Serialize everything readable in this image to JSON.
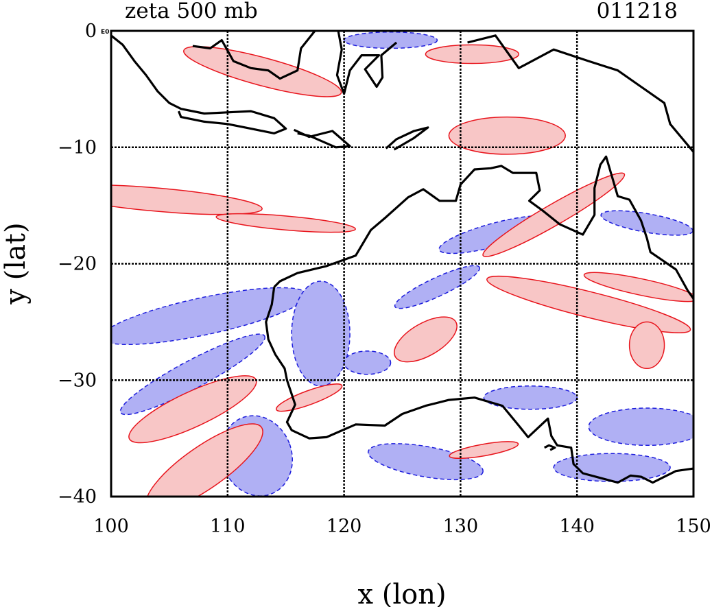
{
  "chart_data": {
    "type": "heatmap",
    "title": "zeta 500 mb",
    "date_label": "011218",
    "xlabel": "x (lon)",
    "ylabel": "y (lat)",
    "xlim": [
      100,
      150
    ],
    "ylim": [
      -40,
      0
    ],
    "xticks": [
      100,
      110,
      120,
      130,
      140,
      150
    ],
    "yticks": [
      0,
      -10,
      -20,
      -30,
      -40
    ],
    "xtick_labels": [
      "100",
      "110",
      "120",
      "130",
      "140",
      "150"
    ],
    "ytick_labels": [
      "0",
      "−10",
      "−20",
      "−30",
      "−40"
    ],
    "corner_note": "E0",
    "grid": true,
    "gridlines_x": [
      110,
      120,
      130,
      140
    ],
    "gridlines_y": [
      -10,
      -20,
      -30
    ],
    "colors": {
      "positive_fill": "#f8c6c6",
      "positive_contour": "#e8141c",
      "negative_fill": "#b0b0f4",
      "negative_contour": "#1c1cdc",
      "coastline": "#000000",
      "grid": "#000000"
    },
    "coastlines": [
      [
        [
          100,
          -0.4
        ],
        [
          101,
          -1.2
        ],
        [
          102,
          -2.6
        ],
        [
          103,
          -3.8
        ],
        [
          104,
          -5.2
        ],
        [
          105,
          -6.2
        ],
        [
          106,
          -6.7
        ],
        [
          108,
          -7.1
        ],
        [
          110,
          -7.0
        ],
        [
          112,
          -6.9
        ],
        [
          114,
          -7.5
        ],
        [
          115,
          -8.4
        ],
        [
          114,
          -8.8
        ],
        [
          112,
          -8.4
        ],
        [
          110,
          -8.0
        ],
        [
          108,
          -7.8
        ],
        [
          106,
          -7.4
        ],
        [
          105.8,
          -6.9
        ]
      ],
      [
        [
          107,
          -1.3
        ],
        [
          108.5,
          -1.5
        ],
        [
          109.5,
          -0.8
        ],
        [
          110.5,
          -2.6
        ],
        [
          112,
          -3.2
        ],
        [
          113.5,
          -3.4
        ],
        [
          114.5,
          -4.1
        ],
        [
          116,
          -3.4
        ],
        [
          116.3,
          -1.5
        ],
        [
          117.5,
          0
        ]
      ],
      [
        [
          119.5,
          0
        ],
        [
          119.8,
          -1.6
        ],
        [
          119.4,
          -3.8
        ],
        [
          120,
          -5.4
        ],
        [
          120.5,
          -3.4
        ],
        [
          121.5,
          -2.1
        ],
        [
          123,
          -2.1
        ],
        [
          121.8,
          -3.3
        ],
        [
          122.8,
          -4.8
        ],
        [
          123.3,
          -4.0
        ],
        [
          123.2,
          -2.1
        ],
        [
          124.5,
          -1.0
        ]
      ],
      [
        [
          115.7,
          -8.5
        ],
        [
          117,
          -9.1
        ],
        [
          119,
          -8.6
        ],
        [
          120.5,
          -9.9
        ],
        [
          119.3,
          -10.0
        ],
        [
          117,
          -9.0
        ],
        [
          116,
          -8.8
        ]
      ],
      [
        [
          123.6,
          -10.1
        ],
        [
          124.5,
          -9.3
        ],
        [
          126,
          -8.6
        ],
        [
          127.2,
          -8.3
        ],
        [
          126,
          -9.2
        ],
        [
          124.3,
          -10.2
        ]
      ],
      [
        [
          130.6,
          -1.0
        ],
        [
          133,
          -0.4
        ],
        [
          135,
          -3.2
        ],
        [
          138,
          -1.6
        ],
        [
          141,
          -2.6
        ],
        [
          143.5,
          -3.4
        ],
        [
          145.5,
          -4.8
        ],
        [
          147.5,
          -6.2
        ],
        [
          148,
          -8.0
        ],
        [
          150,
          -10.4
        ]
      ],
      [
        [
          114,
          -22
        ],
        [
          114.5,
          -21.5
        ],
        [
          116,
          -20.8
        ],
        [
          118.5,
          -20.2
        ],
        [
          121,
          -19.3
        ],
        [
          122.3,
          -17.1
        ],
        [
          123.6,
          -16.0
        ],
        [
          125.5,
          -14.3
        ],
        [
          126.8,
          -13.6
        ],
        [
          128.2,
          -14.6
        ],
        [
          129.6,
          -14.6
        ],
        [
          130,
          -13.2
        ],
        [
          131.2,
          -11.9
        ],
        [
          132.6,
          -11.8
        ],
        [
          133.5,
          -11.6
        ],
        [
          134.5,
          -12.2
        ],
        [
          136.5,
          -12.2
        ],
        [
          136.8,
          -13.7
        ],
        [
          135.9,
          -14.6
        ],
        [
          137,
          -15.4
        ],
        [
          138.5,
          -16.6
        ],
        [
          140.5,
          -17.5
        ],
        [
          141.5,
          -15.8
        ],
        [
          141.5,
          -13.5
        ],
        [
          142,
          -11.5
        ],
        [
          142.5,
          -10.8
        ],
        [
          143.5,
          -14.2
        ],
        [
          144.5,
          -14.5
        ],
        [
          145.5,
          -16.3
        ],
        [
          146,
          -17.8
        ],
        [
          146.3,
          -19
        ],
        [
          148.5,
          -20.5
        ],
        [
          149.5,
          -22.3
        ],
        [
          150,
          -23
        ]
      ],
      [
        [
          150,
          -37.6
        ],
        [
          149.9,
          -37.6
        ],
        [
          148.5,
          -37.8
        ],
        [
          146.5,
          -38.8
        ],
        [
          145.5,
          -38.3
        ],
        [
          144.6,
          -38.2
        ],
        [
          143.5,
          -38.8
        ],
        [
          142,
          -38.4
        ],
        [
          140.5,
          -38.0
        ],
        [
          139.7,
          -37.2
        ],
        [
          139.5,
          -35.8
        ],
        [
          138.3,
          -35.6
        ],
        [
          137.8,
          -34.8
        ],
        [
          137.5,
          -33.3
        ],
        [
          135.8,
          -34.9
        ],
        [
          135,
          -33.9
        ],
        [
          133.6,
          -32.2
        ],
        [
          131.2,
          -31.5
        ],
        [
          129,
          -31.7
        ],
        [
          127,
          -32.2
        ],
        [
          125,
          -32.9
        ],
        [
          123.5,
          -33.9
        ],
        [
          121,
          -33.8
        ],
        [
          118.5,
          -34.9
        ],
        [
          117,
          -35.0
        ],
        [
          115.5,
          -34.3
        ],
        [
          115.1,
          -33.6
        ],
        [
          115.8,
          -32.1
        ],
        [
          115.1,
          -30
        ],
        [
          114.9,
          -29
        ],
        [
          114.1,
          -27.8
        ],
        [
          113.5,
          -26.5
        ],
        [
          113.3,
          -25
        ],
        [
          113.8,
          -23.5
        ],
        [
          114,
          -22
        ]
      ],
      [
        [
          137.2,
          -35.8
        ],
        [
          137.6,
          -35.6
        ],
        [
          138.1,
          -35.8
        ],
        [
          137.7,
          -36.0
        ]
      ]
    ],
    "positive_regions": [
      {
        "cx": 113,
        "cy": -3.5,
        "rx": 7,
        "ry": 1.2,
        "angle": -15
      },
      {
        "cx": 104,
        "cy": -14.5,
        "rx": 9,
        "ry": 1.0,
        "angle": -5
      },
      {
        "cx": 115,
        "cy": -16.5,
        "rx": 6,
        "ry": 0.6,
        "angle": -5
      },
      {
        "cx": 134,
        "cy": -9.0,
        "rx": 5,
        "ry": 1.6,
        "angle": 0
      },
      {
        "cx": 138,
        "cy": -15.8,
        "rx": 7,
        "ry": 0.9,
        "angle": 30
      },
      {
        "cx": 141,
        "cy": -23.5,
        "rx": 9,
        "ry": 1.1,
        "angle": -14
      },
      {
        "cx": 145.5,
        "cy": -22.0,
        "rx": 5,
        "ry": 0.7,
        "angle": -12
      },
      {
        "cx": 127,
        "cy": -26.5,
        "rx": 3,
        "ry": 1.4,
        "angle": 30
      },
      {
        "cx": 107,
        "cy": -32.5,
        "rx": 6,
        "ry": 1.5,
        "angle": 25
      },
      {
        "cx": 108,
        "cy": -37.5,
        "rx": 6,
        "ry": 1.8,
        "angle": 35
      },
      {
        "cx": 117,
        "cy": -31.5,
        "rx": 3,
        "ry": 0.6,
        "angle": 20
      },
      {
        "cx": 132,
        "cy": -36.0,
        "rx": 3,
        "ry": 0.5,
        "angle": 10
      },
      {
        "cx": 146,
        "cy": -27.0,
        "rx": 1.5,
        "ry": 2.0,
        "angle": 0
      },
      {
        "cx": 131,
        "cy": -2.0,
        "rx": 4,
        "ry": 0.8,
        "angle": 0
      }
    ],
    "negative_regions": [
      {
        "cx": 108,
        "cy": -24.5,
        "rx": 9,
        "ry": 1.6,
        "angle": 12
      },
      {
        "cx": 107,
        "cy": -29.5,
        "rx": 7,
        "ry": 1.2,
        "angle": 28
      },
      {
        "cx": 112.5,
        "cy": -36.5,
        "rx": 3,
        "ry": 3.5,
        "angle": 20
      },
      {
        "cx": 118,
        "cy": -26.0,
        "rx": 2.5,
        "ry": 4.5,
        "angle": 0
      },
      {
        "cx": 133,
        "cy": -17.5,
        "rx": 5,
        "ry": 1.0,
        "angle": 15
      },
      {
        "cx": 128,
        "cy": -22.0,
        "rx": 4,
        "ry": 0.8,
        "angle": 25
      },
      {
        "cx": 146,
        "cy": -34.0,
        "rx": 5,
        "ry": 1.6,
        "angle": 0
      },
      {
        "cx": 136,
        "cy": -31.5,
        "rx": 4,
        "ry": 1.0,
        "angle": 0
      },
      {
        "cx": 143,
        "cy": -37.5,
        "rx": 5,
        "ry": 1.2,
        "angle": 0
      },
      {
        "cx": 127,
        "cy": -37.0,
        "rx": 5,
        "ry": 1.3,
        "angle": -10
      },
      {
        "cx": 124,
        "cy": -0.8,
        "rx": 4,
        "ry": 0.7,
        "angle": 0
      },
      {
        "cx": 146,
        "cy": -16.5,
        "rx": 4,
        "ry": 0.8,
        "angle": -10
      },
      {
        "cx": 122,
        "cy": -28.5,
        "rx": 2,
        "ry": 1.0,
        "angle": 0
      }
    ]
  }
}
